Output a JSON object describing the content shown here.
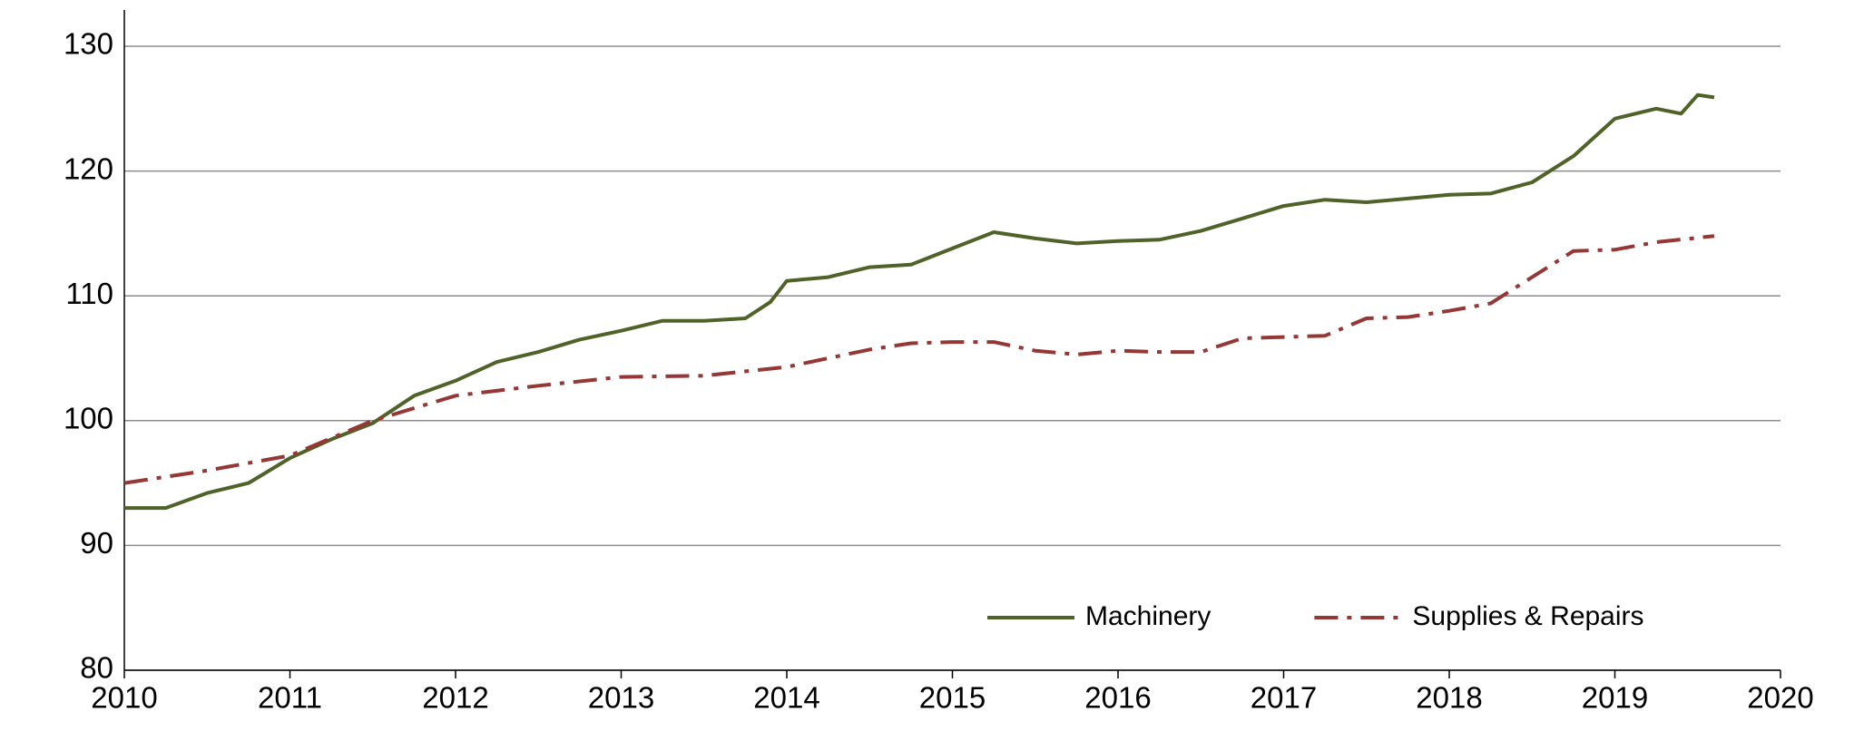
{
  "chart_data": {
    "type": "line",
    "xlim": [
      2010,
      2020
    ],
    "xticks": [
      2010,
      2011,
      2012,
      2013,
      2014,
      2015,
      2016,
      2017,
      2018,
      2019,
      2020
    ],
    "ylim": [
      80,
      130
    ],
    "yticks": [
      80,
      90,
      100,
      110,
      120,
      130
    ],
    "grid": true,
    "legend": "lower right",
    "series": [
      {
        "name": "Machinery",
        "color": "#4f6228",
        "linestyle": "solid",
        "x": [
          2010.0,
          2010.25,
          2010.5,
          2010.75,
          2011.0,
          2011.25,
          2011.5,
          2011.75,
          2012.0,
          2012.25,
          2012.5,
          2012.75,
          2013.0,
          2013.25,
          2013.5,
          2013.75,
          2013.9,
          2014.0,
          2014.25,
          2014.5,
          2014.75,
          2015.0,
          2015.25,
          2015.5,
          2015.75,
          2016.0,
          2016.25,
          2016.5,
          2016.75,
          2017.0,
          2017.25,
          2017.5,
          2017.75,
          2018.0,
          2018.25,
          2018.5,
          2018.75,
          2019.0,
          2019.25,
          2019.4,
          2019.5,
          2019.6
        ],
        "values": [
          93,
          93,
          94.2,
          95,
          97,
          98.5,
          99.8,
          102,
          103.2,
          104.7,
          105.5,
          106.5,
          107.2,
          108,
          108,
          108.2,
          109.5,
          111.2,
          111.5,
          112.3,
          112.5,
          113.8,
          115.1,
          114.6,
          114.2,
          114.4,
          114.5,
          115.2,
          116.2,
          117.2,
          117.7,
          117.5,
          117.8,
          118.1,
          118.2,
          119.1,
          121.2,
          124.2,
          125,
          124.6,
          126.1,
          125.9
        ]
      },
      {
        "name": "Supplies & Repairs",
        "color": "#953735",
        "linestyle": "dashdot",
        "x": [
          2010.0,
          2010.5,
          2011.0,
          2011.5,
          2012.0,
          2012.5,
          2013.0,
          2013.5,
          2014.0,
          2014.5,
          2014.75,
          2015.0,
          2015.25,
          2015.5,
          2015.75,
          2016.0,
          2016.25,
          2016.5,
          2016.75,
          2017.0,
          2017.25,
          2017.5,
          2017.75,
          2018.0,
          2018.25,
          2018.5,
          2018.75,
          2019.0,
          2019.25,
          2019.6
        ],
        "values": [
          95,
          96,
          97.2,
          100,
          102,
          102.8,
          103.5,
          103.6,
          104.3,
          105.7,
          106.2,
          106.3,
          106.3,
          105.6,
          105.3,
          105.6,
          105.5,
          105.5,
          106.6,
          106.7,
          106.8,
          108.2,
          108.3,
          108.8,
          109.4,
          111.5,
          113.6,
          113.7,
          114.3,
          114.8
        ]
      }
    ]
  }
}
